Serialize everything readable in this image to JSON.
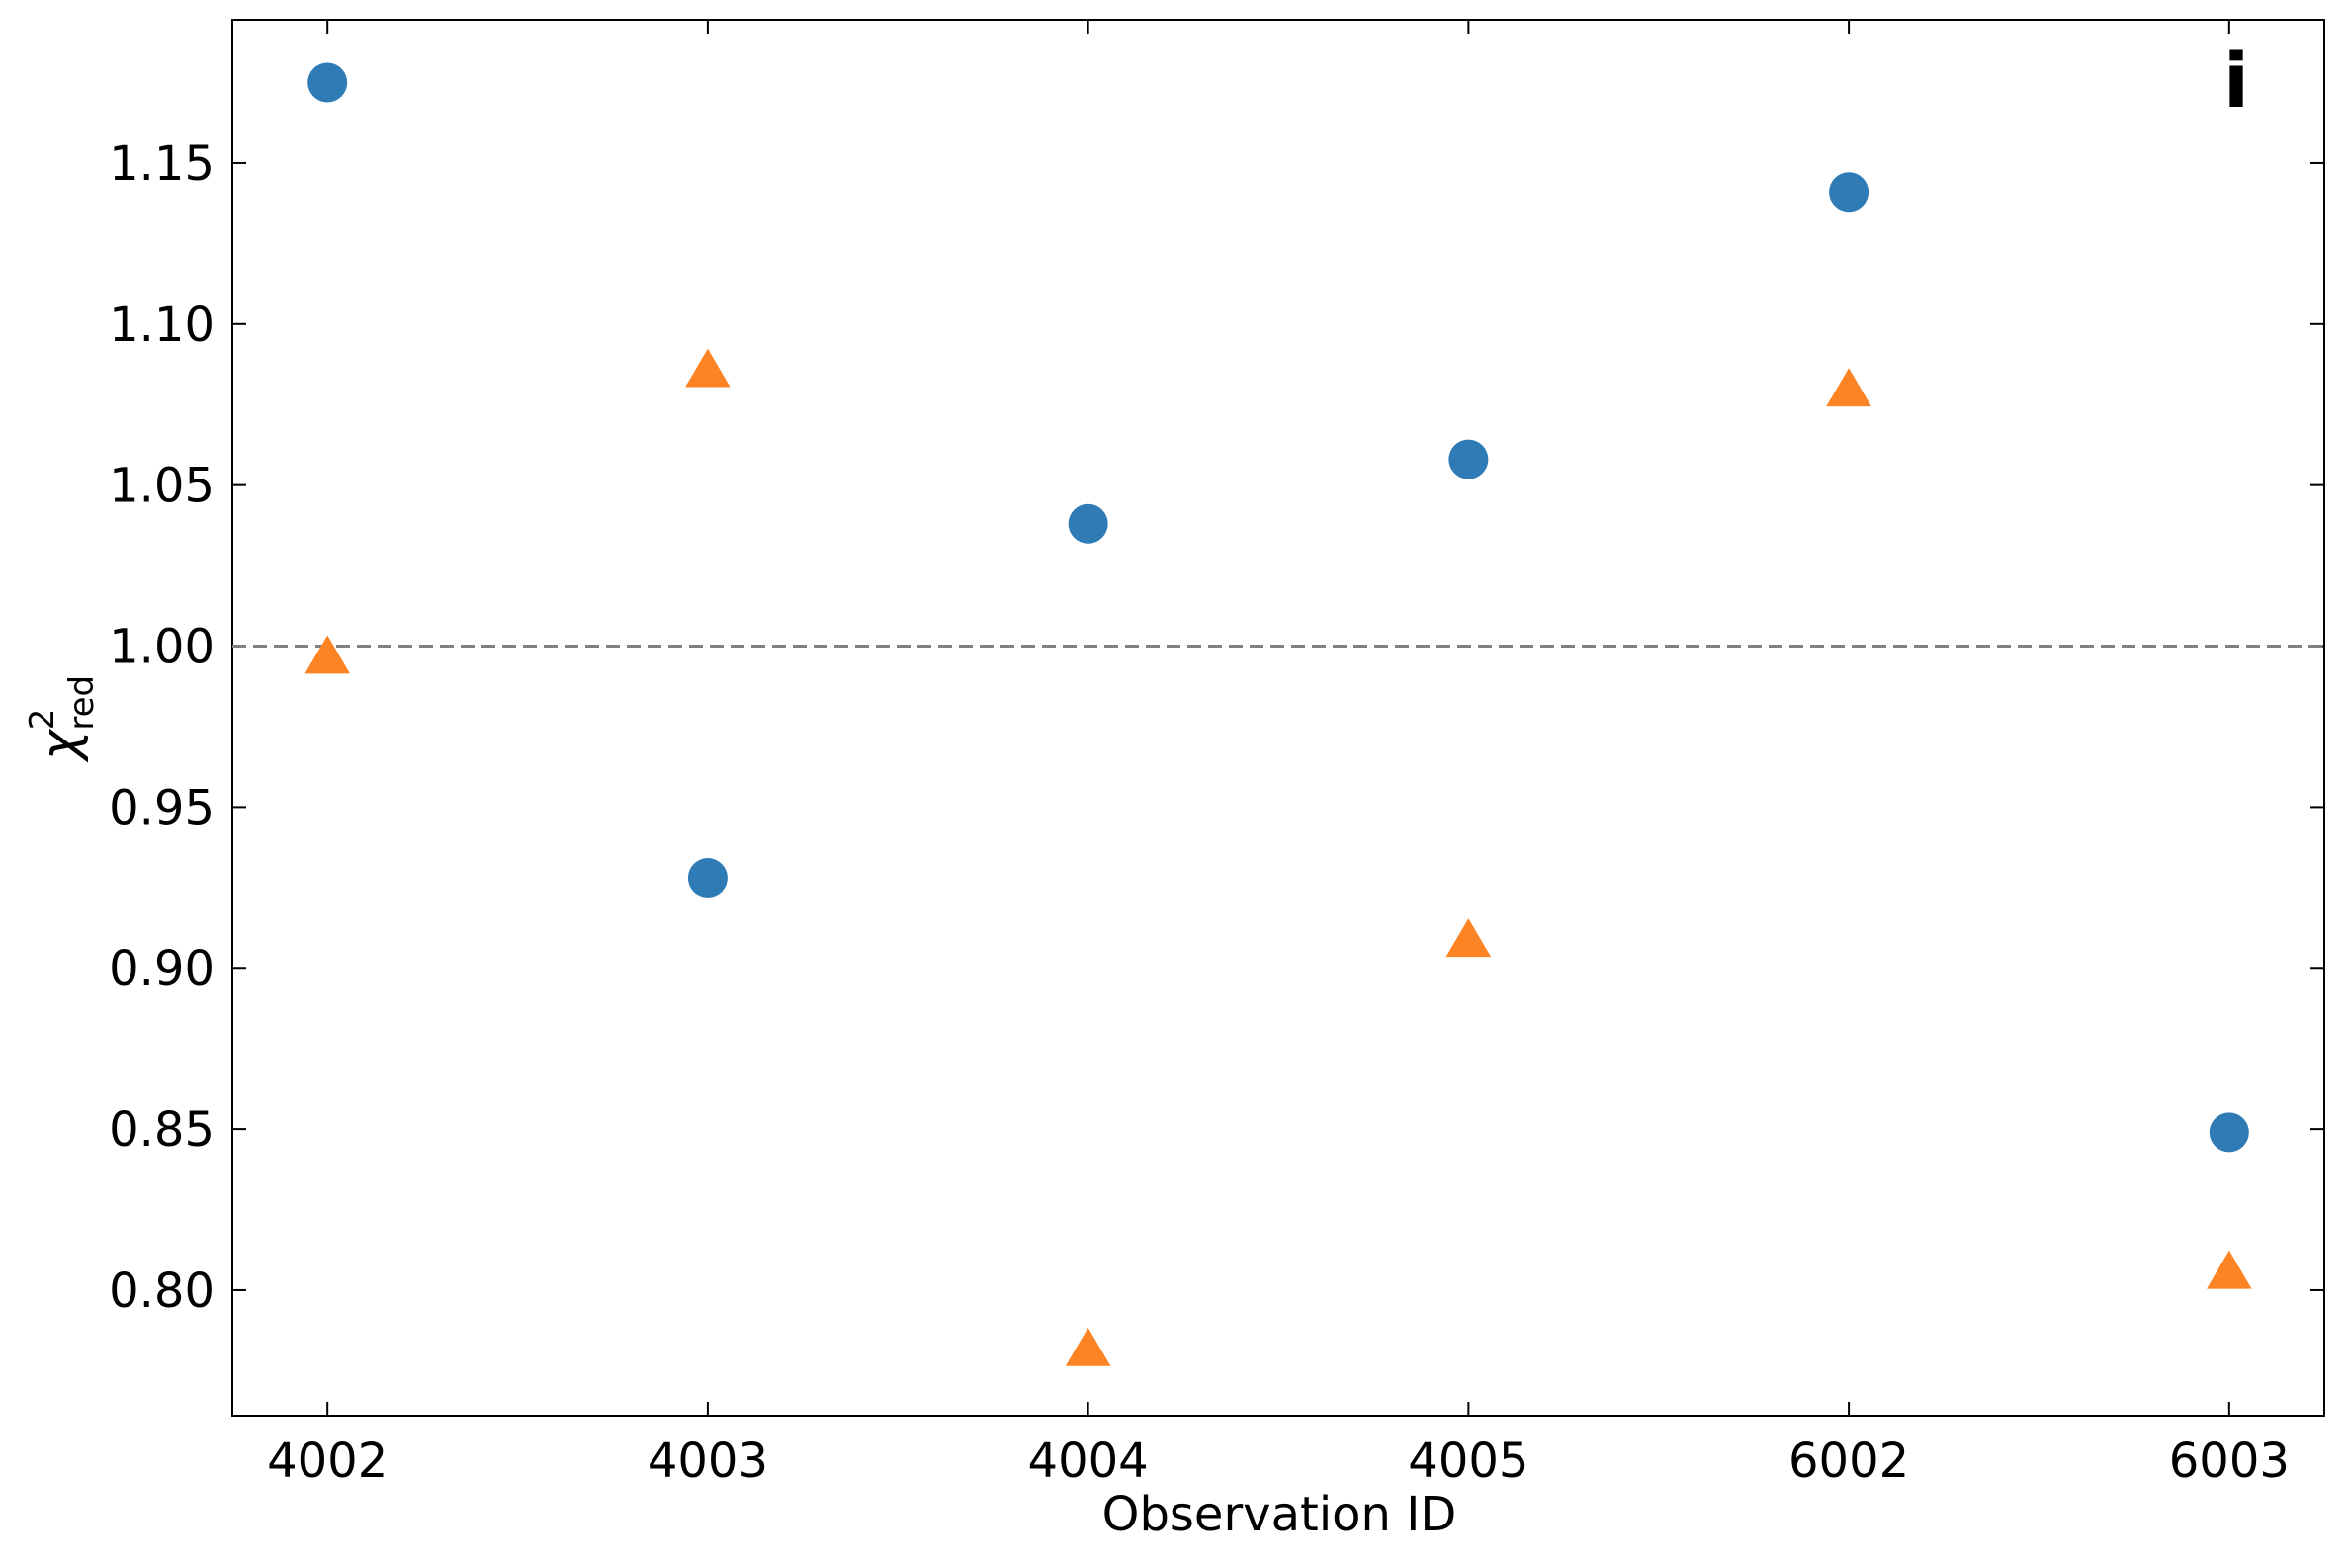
{
  "chart_data": {
    "type": "scatter",
    "x_label": "Observation ID",
    "y_label": {
      "symbol": "χ",
      "sup": "2",
      "sub": "red"
    },
    "panel_label": "i",
    "categories": [
      "4002",
      "4003",
      "4004",
      "4005",
      "6002",
      "6003"
    ],
    "series": [
      {
        "marker": "circle",
        "color": "#2f7bb6",
        "values": [
          1.175,
          0.928,
          1.038,
          1.058,
          1.141,
          0.849
        ]
      },
      {
        "marker": "triangle",
        "color": "#fd8424",
        "values": [
          0.996,
          1.085,
          0.781,
          0.908,
          1.079,
          0.805
        ]
      }
    ],
    "hline": {
      "value": 1.0,
      "color": "#808080",
      "style": "dashed"
    },
    "ylim": [
      0.761,
      1.1945
    ],
    "yticks": [
      {
        "value": 0.8,
        "label": "0.80"
      },
      0.85,
      {
        "value": 0.9,
        "label": "0.90"
      },
      0.95,
      {
        "value": 1.0,
        "label": "1.00"
      },
      1.05,
      {
        "value": 1.1,
        "label": "1.10"
      },
      1.15
    ],
    "grid": false
  }
}
